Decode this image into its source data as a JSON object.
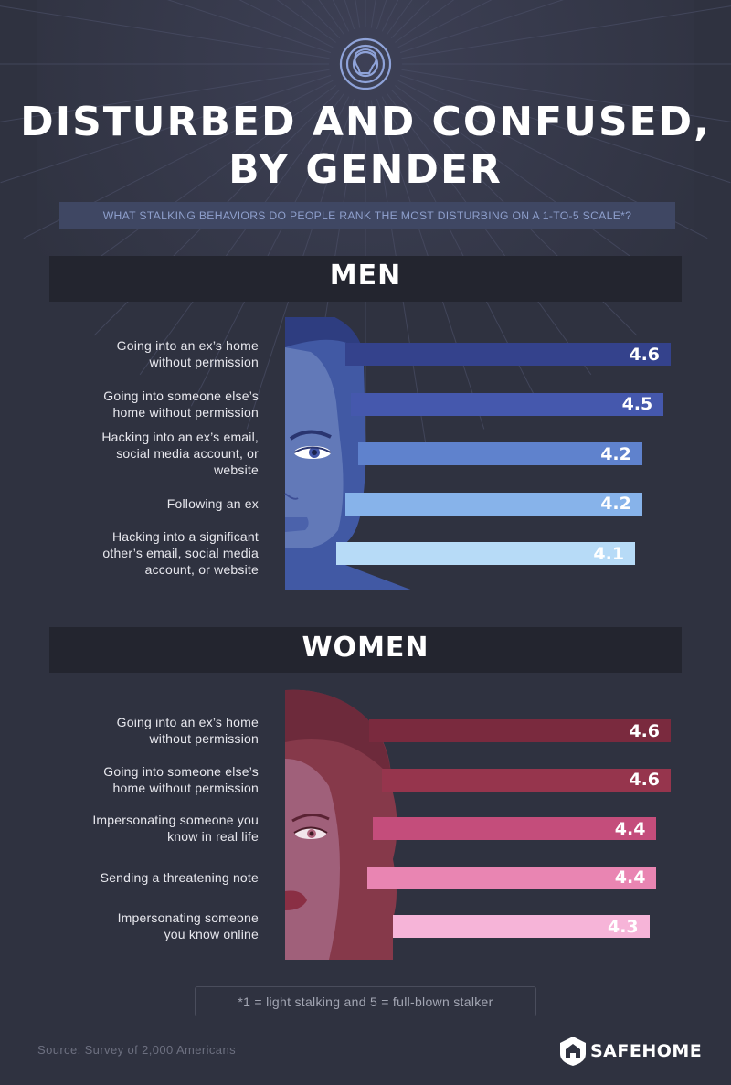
{
  "title_line1": "DISTURBED AND CONFUSED,",
  "title_line2": "BY GENDER",
  "subtitle": "WHAT STALKING BEHAVIORS DO PEOPLE RANK THE MOST DISTURBING ON A 1-TO-5 SCALE*?",
  "footnote": "*1 = light stalking and 5 = full-blown stalker",
  "source": "Source: Survey of 2,000 Americans",
  "brand": "SAFEHOME",
  "icons": {
    "header": "maze-head-icon",
    "brand": "house-shield-icon"
  },
  "colors": {
    "background": "#2f3240",
    "band": "#23252f",
    "men_bars": [
      "#34428c",
      "#4558ad",
      "#5f82cd",
      "#87b3ea",
      "#b7dbf7"
    ],
    "women_bars": [
      "#7a2a3e",
      "#96354d",
      "#c44d7b",
      "#e985b2",
      "#f6b4d8"
    ]
  },
  "chart_data": [
    {
      "type": "bar",
      "orientation": "horizontal",
      "title": "MEN",
      "categories": [
        "Going into an ex's home without permission",
        "Going into someone else's home without permission",
        "Hacking into an ex's email, social media account, or website",
        "Following an ex",
        "Hacking into a significant other's email, social media account, or website"
      ],
      "label_lines": [
        [
          "Going into an ex’s home",
          "without permission"
        ],
        [
          "Going into someone else’s",
          "home without permission"
        ],
        [
          "Hacking into an ex’s email,",
          "social media account, or",
          "website"
        ],
        [
          "Following an ex"
        ],
        [
          "Hacking into a significant",
          "other’s email, social media",
          "account, or website"
        ]
      ],
      "values": [
        4.6,
        4.5,
        4.2,
        4.2,
        4.1
      ],
      "value_labels": [
        "4.6",
        "4.5",
        "4.2",
        "4.2",
        "4.1"
      ],
      "xlim": [
        1,
        5
      ]
    },
    {
      "type": "bar",
      "orientation": "horizontal",
      "title": "WOMEN",
      "categories": [
        "Going into an ex's home without permission",
        "Going into someone else's home without permission",
        "Impersonating someone you know in real life",
        "Sending a threatening note",
        "Impersonating someone you know online"
      ],
      "label_lines": [
        [
          "Going into an ex’s home",
          "without permission"
        ],
        [
          "Going into someone else’s",
          "home without permission"
        ],
        [
          "Impersonating someone you",
          "know in real life"
        ],
        [
          "Sending a threatening note"
        ],
        [
          "Impersonating someone",
          "you know online"
        ]
      ],
      "values": [
        4.6,
        4.6,
        4.4,
        4.4,
        4.3
      ],
      "value_labels": [
        "4.6",
        "4.6",
        "4.4",
        "4.4",
        "4.3"
      ],
      "xlim": [
        1,
        5
      ]
    }
  ]
}
